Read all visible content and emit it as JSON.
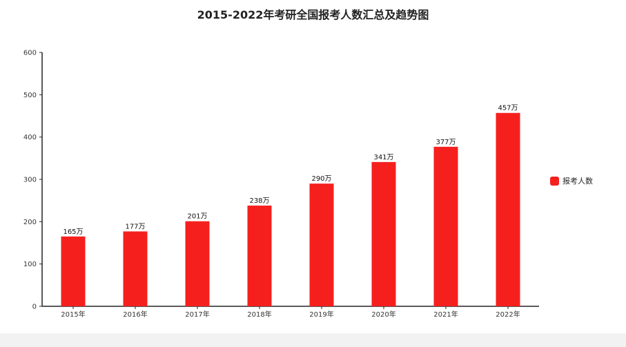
{
  "chart_data": {
    "type": "bar",
    "title": "2015-2022年考研全国报考人数汇总及趋势图",
    "categories": [
      "2015年",
      "2016年",
      "2017年",
      "2018年",
      "2019年",
      "2020年",
      "2021年",
      "2022年"
    ],
    "series": [
      {
        "name": "报考人数",
        "values": [
          165,
          177,
          201,
          238,
          290,
          341,
          377,
          457
        ],
        "labels": [
          "165万",
          "177万",
          "201万",
          "238万",
          "290万",
          "341万",
          "377万",
          "457万"
        ],
        "color": "#f5201e"
      }
    ],
    "ylim": [
      0,
      600
    ],
    "yticks": [
      0,
      100,
      200,
      300,
      400,
      500,
      600
    ],
    "grid": false,
    "legend_position": "right"
  }
}
